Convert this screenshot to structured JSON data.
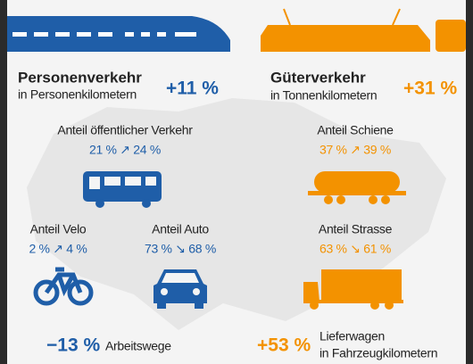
{
  "personenverkehr": {
    "title": "Personenverkehr",
    "subtitle": "in Personenkilometern",
    "change": "+11 %"
  },
  "gueterverkehr": {
    "title": "Güterverkehr",
    "subtitle": "in Tonnenkilometern",
    "change": "+31 %"
  },
  "shares": [
    {
      "label": "Anteil öffentlicher Verkehr",
      "value": "21 % ↗ 24 %"
    },
    {
      "label": "Anteil Schiene",
      "value": "37 % ↗ 39 %"
    },
    {
      "label": "Anteil Velo",
      "value": "2 % ↗ 4 %"
    },
    {
      "label": "Anteil Auto",
      "value": "73 % ↘ 68 %"
    },
    {
      "label": "Anteil Strasse",
      "value": "63 % ↘ 61 %"
    }
  ],
  "arbeitswege": {
    "change": "−13 %",
    "label": "Arbeitswege"
  },
  "lieferwagen": {
    "change": "+53 %",
    "label_lines": [
      "Lieferwagen",
      "in Fahrzeugkilometern"
    ]
  }
}
